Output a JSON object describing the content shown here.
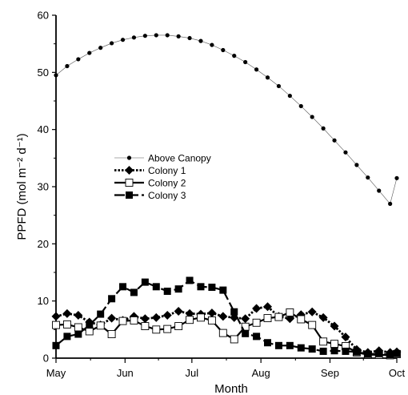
{
  "chart_data": {
    "type": "line",
    "xlabel": "Month",
    "ylabel": "PPFD (mol m⁻² d⁻¹)",
    "x_categories": [
      "May",
      "Jun",
      "Jul",
      "Aug",
      "Sep",
      "Oct"
    ],
    "ylim": [
      0,
      60
    ],
    "yticks": [
      "0",
      "10",
      "20",
      "30",
      "40",
      "50",
      "60"
    ],
    "grid": false,
    "legend_position": "middle-left",
    "series": [
      {
        "name": "Above Canopy",
        "color": "#000000",
        "x": [
          "May 1",
          "May 6",
          "May 11",
          "May 16",
          "May 21",
          "May 26",
          "May 31",
          "Jun 5",
          "Jun 10",
          "Jun 15",
          "Jun 20",
          "Jun 25",
          "Jun 30",
          "Jul 5",
          "Jul 10",
          "Jul 15",
          "Jul 20",
          "Jul 25",
          "Jul 30",
          "Aug 4",
          "Aug 9",
          "Aug 14",
          "Aug 19",
          "Aug 24",
          "Aug 29",
          "Sep 3",
          "Sep 8",
          "Sep 13",
          "Sep 18",
          "Sep 23",
          "Sep 28",
          "Oct 1"
        ],
        "values": [
          49.5,
          51.1,
          52.3,
          53.4,
          54.3,
          55.1,
          55.7,
          56.1,
          56.4,
          56.5,
          56.5,
          56.3,
          56.0,
          55.5,
          54.8,
          53.9,
          52.9,
          51.8,
          50.5,
          49.1,
          47.6,
          45.9,
          44.1,
          42.2,
          40.2,
          38.1,
          36.0,
          33.8,
          31.6,
          29.3,
          27.0,
          31.5
        ]
      },
      {
        "name": "Colony 1",
        "color": "#000000",
        "x": [
          "May 1",
          "May 6",
          "May 11",
          "May 16",
          "May 21",
          "May 26",
          "May 31",
          "Jun 5",
          "Jun 10",
          "Jun 15",
          "Jun 20",
          "Jun 25",
          "Jun 30",
          "Jul 5",
          "Jul 10",
          "Jul 15",
          "Jul 20",
          "Jul 25",
          "Jul 30",
          "Aug 4",
          "Aug 9",
          "Aug 14",
          "Aug 19",
          "Aug 24",
          "Aug 29",
          "Sep 3",
          "Sep 8",
          "Sep 13",
          "Sep 18",
          "Sep 23",
          "Sep 28",
          "Oct 1"
        ],
        "values": [
          7.3,
          7.8,
          7.5,
          6.3,
          5.8,
          7.0,
          6.6,
          7.3,
          6.9,
          7.1,
          7.5,
          8.2,
          7.8,
          7.7,
          7.9,
          7.3,
          7.1,
          6.9,
          8.7,
          9.0,
          7.3,
          6.9,
          7.6,
          8.1,
          7.1,
          5.6,
          3.7,
          1.5,
          1.0,
          1.3,
          1.0,
          1.1
        ]
      },
      {
        "name": "Colony 2",
        "color": "#000000",
        "x": [
          "May 1",
          "May 6",
          "May 11",
          "May 16",
          "May 21",
          "May 26",
          "May 31",
          "Jun 5",
          "Jun 10",
          "Jun 15",
          "Jun 20",
          "Jun 25",
          "Jun 30",
          "Jul 5",
          "Jul 10",
          "Jul 15",
          "Jul 20",
          "Jul 25",
          "Jul 30",
          "Aug 4",
          "Aug 9",
          "Aug 14",
          "Aug 19",
          "Aug 24",
          "Aug 29",
          "Sep 3",
          "Sep 8",
          "Sep 13",
          "Sep 18",
          "Sep 23",
          "Sep 28",
          "Oct 1"
        ],
        "values": [
          5.8,
          5.9,
          5.4,
          4.7,
          5.7,
          4.2,
          6.5,
          6.6,
          5.6,
          5.0,
          5.1,
          5.6,
          6.7,
          7.1,
          6.6,
          4.4,
          3.3,
          5.5,
          6.2,
          7.0,
          7.2,
          8.0,
          6.8,
          5.8,
          2.9,
          2.5,
          2.1,
          1.0,
          0.6,
          0.6,
          0.5,
          0.7
        ]
      },
      {
        "name": "Colony 3",
        "color": "#000000",
        "x": [
          "May 1",
          "May 6",
          "May 11",
          "May 16",
          "May 21",
          "May 26",
          "May 31",
          "Jun 5",
          "Jun 10",
          "Jun 15",
          "Jun 20",
          "Jun 25",
          "Jun 30",
          "Jul 5",
          "Jul 10",
          "Jul 15",
          "Jul 20",
          "Jul 25",
          "Jul 30",
          "Aug 4",
          "Aug 9",
          "Aug 14",
          "Aug 19",
          "Aug 24",
          "Aug 29",
          "Sep 3",
          "Sep 8",
          "Sep 13",
          "Sep 18",
          "Sep 23",
          "Sep 28",
          "Oct 1"
        ],
        "values": [
          2.2,
          3.8,
          4.2,
          5.8,
          7.7,
          10.4,
          12.5,
          11.5,
          13.3,
          12.5,
          11.7,
          12.1,
          13.6,
          12.5,
          12.4,
          11.9,
          8.1,
          4.3,
          3.8,
          2.7,
          2.2,
          2.2,
          1.8,
          1.6,
          1.2,
          1.3,
          1.2,
          1.1,
          0.7,
          0.8,
          0.6,
          0.8
        ]
      }
    ]
  }
}
